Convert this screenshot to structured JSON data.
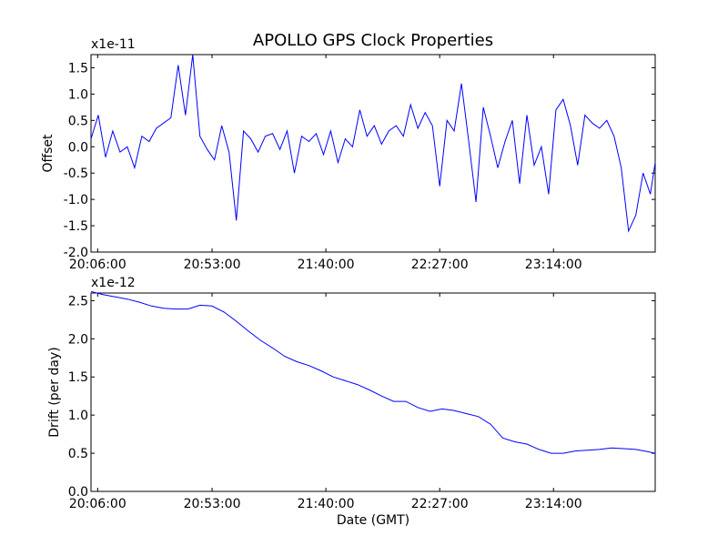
{
  "chart_data": [
    {
      "type": "line",
      "title": "APOLLO GPS Clock Properties",
      "xlabel": "",
      "ylabel": "Offset",
      "multiplier": "x1e-11",
      "x_ticks": [
        "20:06:00",
        "20:53:00",
        "21:40:00",
        "22:27:00",
        "23:14:00"
      ],
      "x_tick_values": [
        2.75,
        50,
        97,
        144,
        191
      ],
      "xlim": [
        0,
        233
      ],
      "ylim": [
        -2.0,
        1.75
      ],
      "y_ticks": [
        "-2.0",
        "-1.5",
        "-1.0",
        "-0.5",
        "0.0",
        "0.5",
        "1.0",
        "1.5"
      ],
      "y_tick_values": [
        -2.0,
        -1.5,
        -1.0,
        -0.5,
        0.0,
        0.5,
        1.0,
        1.5
      ],
      "grid": false,
      "color": "#0000ff",
      "series": [
        {
          "x": [
            0,
            3,
            6,
            9,
            12,
            15,
            18,
            21,
            24,
            27,
            30,
            33,
            36,
            39,
            42,
            45,
            48,
            51,
            54,
            57,
            60,
            63,
            66,
            69,
            72,
            75,
            78,
            81,
            84,
            87,
            90,
            93,
            96,
            99,
            102,
            105,
            108,
            111,
            114,
            117,
            120,
            123,
            126,
            129,
            132,
            135,
            138,
            141,
            144,
            147,
            150,
            153,
            156,
            159,
            162,
            165,
            168,
            171,
            174,
            177,
            180,
            183,
            186,
            189,
            192,
            195,
            198,
            201,
            204,
            207,
            210,
            213,
            216,
            219,
            222,
            225,
            228,
            231,
            233
          ],
          "y": [
            0.15,
            0.6,
            -0.2,
            0.3,
            -0.1,
            0.0,
            -0.4,
            0.2,
            0.1,
            0.35,
            0.45,
            0.55,
            1.55,
            0.6,
            1.75,
            0.2,
            -0.05,
            -0.25,
            0.4,
            -0.1,
            -1.4,
            0.3,
            0.15,
            -0.1,
            0.2,
            0.25,
            -0.05,
            0.3,
            -0.5,
            0.2,
            0.1,
            0.25,
            -0.15,
            0.3,
            -0.3,
            0.15,
            0.0,
            0.7,
            0.2,
            0.4,
            0.05,
            0.3,
            0.4,
            0.2,
            0.8,
            0.35,
            0.65,
            0.4,
            -0.75,
            0.5,
            0.3,
            1.2,
            0.1,
            -1.05,
            0.75,
            0.2,
            -0.4,
            0.1,
            0.5,
            -0.7,
            0.6,
            -0.35,
            0.0,
            -0.9,
            0.7,
            0.9,
            0.4,
            -0.35,
            0.6,
            0.45,
            0.35,
            0.5,
            0.2,
            -0.4,
            -1.6,
            -1.3,
            -0.5,
            -0.9,
            -0.3
          ]
        }
      ]
    },
    {
      "type": "line",
      "title": "",
      "xlabel": "Date (GMT)",
      "ylabel": "Drift (per day)",
      "multiplier": "x1e-12",
      "x_ticks": [
        "20:06:00",
        "20:53:00",
        "21:40:00",
        "22:27:00",
        "23:14:00"
      ],
      "x_tick_values": [
        2.75,
        50,
        97,
        144,
        191
      ],
      "xlim": [
        0,
        233
      ],
      "ylim": [
        0.0,
        2.6
      ],
      "y_ticks": [
        "0.0",
        "0.5",
        "1.0",
        "1.5",
        "2.0",
        "2.5"
      ],
      "y_tick_values": [
        0.0,
        0.5,
        1.0,
        1.5,
        2.0,
        2.5
      ],
      "grid": false,
      "color": "#0000ff",
      "series": [
        {
          "x": [
            0,
            5,
            10,
            15,
            20,
            25,
            30,
            35,
            40,
            45,
            50,
            55,
            60,
            65,
            70,
            75,
            80,
            85,
            90,
            95,
            100,
            105,
            110,
            115,
            120,
            125,
            130,
            135,
            140,
            145,
            150,
            155,
            160,
            165,
            170,
            175,
            180,
            185,
            190,
            195,
            200,
            205,
            210,
            215,
            220,
            225,
            230,
            233
          ],
          "y": [
            2.62,
            2.58,
            2.55,
            2.52,
            2.48,
            2.43,
            2.4,
            2.39,
            2.39,
            2.44,
            2.43,
            2.35,
            2.23,
            2.1,
            1.98,
            1.88,
            1.77,
            1.7,
            1.65,
            1.58,
            1.5,
            1.45,
            1.4,
            1.33,
            1.25,
            1.18,
            1.18,
            1.1,
            1.05,
            1.08,
            1.06,
            1.02,
            0.98,
            0.88,
            0.7,
            0.65,
            0.62,
            0.55,
            0.5,
            0.5,
            0.53,
            0.54,
            0.55,
            0.57,
            0.56,
            0.55,
            0.52,
            0.5
          ]
        }
      ]
    }
  ]
}
